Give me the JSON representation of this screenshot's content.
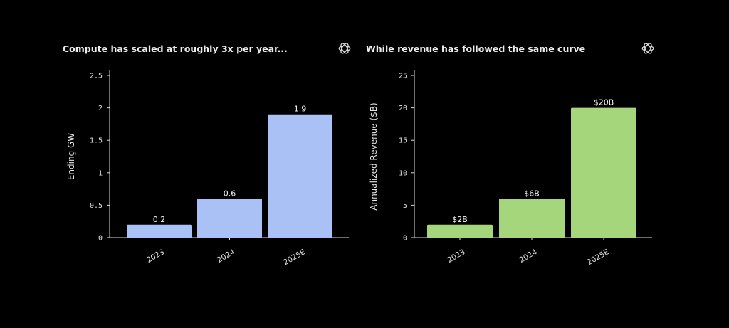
{
  "charts": [
    {
      "id": "compute",
      "title": "Compute has scaled at roughly 3x per year...",
      "logo_icon": "openai-logo-icon"
    },
    {
      "id": "revenue",
      "title": "While revenue has followed the same curve",
      "logo_icon": "openai-logo-icon"
    }
  ],
  "chart_data": [
    {
      "type": "bar",
      "title": "Compute has scaled at roughly 3x per year...",
      "categories": [
        "2023",
        "2024",
        "2025E"
      ],
      "values": [
        0.2,
        0.6,
        1.9
      ],
      "data_labels": [
        "0.2",
        "0.6",
        "1.9"
      ],
      "xlabel": "",
      "ylabel": "Ending GW",
      "ylim": [
        0,
        2.5
      ],
      "yticks": [
        0,
        0.5,
        1,
        1.5,
        2,
        2.5
      ],
      "ytick_labels": [
        "0",
        "0.5",
        "1",
        "1.5",
        "2",
        "2.5"
      ],
      "bar_color": "#a9c1f5",
      "grid": false,
      "legend": "none"
    },
    {
      "type": "bar",
      "title": "While revenue has followed the same curve",
      "categories": [
        "2023",
        "2024",
        "2025E"
      ],
      "values": [
        2,
        6,
        20
      ],
      "data_labels": [
        "$2B",
        "$6B",
        "$20B"
      ],
      "xlabel": "",
      "ylabel": "Annualized Revenue ($B)",
      "ylim": [
        0,
        25
      ],
      "yticks": [
        0,
        5,
        10,
        15,
        20,
        25
      ],
      "ytick_labels": [
        "0",
        "5",
        "10",
        "15",
        "20",
        "25"
      ],
      "bar_color": "#a6d67c",
      "grid": false,
      "legend": "none"
    }
  ]
}
